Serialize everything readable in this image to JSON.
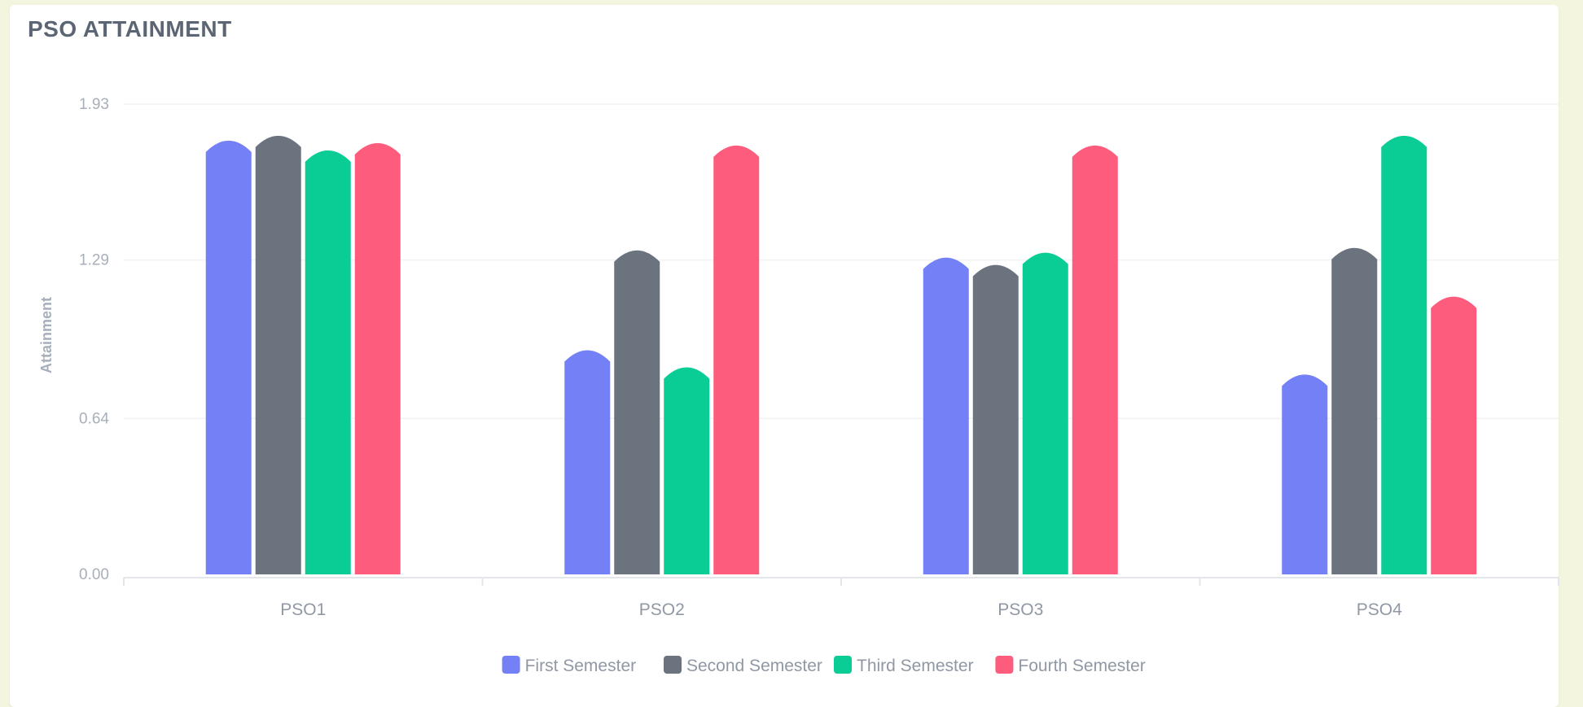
{
  "card": {
    "title": "PSO ATTAINMENT"
  },
  "chart_data": {
    "type": "bar",
    "title": "PSO ATTAINMENT",
    "xlabel": "",
    "ylabel": "Attainment",
    "categories": [
      "PSO1",
      "PSO2",
      "PSO3",
      "PSO4"
    ],
    "yticks": [
      "0.00",
      "0.64",
      "1.29",
      "1.93"
    ],
    "ylim": [
      0,
      1.93
    ],
    "grid": true,
    "legend_position": "bottom",
    "series": [
      {
        "name": "First Semester",
        "color": "#7480f5",
        "values": [
          1.78,
          0.92,
          1.3,
          0.82
        ]
      },
      {
        "name": "Second Semester",
        "color": "#6b737e",
        "values": [
          1.8,
          1.33,
          1.27,
          1.34
        ]
      },
      {
        "name": "Third Semester",
        "color": "#0acd96",
        "values": [
          1.74,
          0.85,
          1.32,
          1.8
        ]
      },
      {
        "name": "Fourth Semester",
        "color": "#fe5c7c",
        "values": [
          1.77,
          1.76,
          1.76,
          1.14
        ]
      }
    ]
  }
}
